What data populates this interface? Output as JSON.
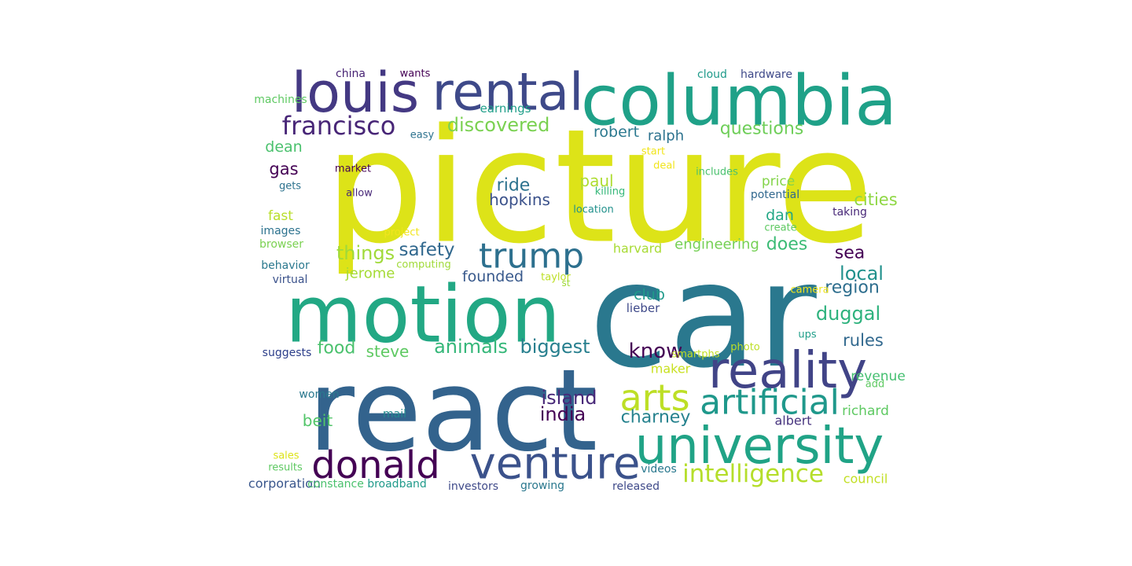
{
  "words": [
    {
      "text": "picture",
      "color": "#dde318"
    },
    {
      "text": "car",
      "color": "#2a788e"
    },
    {
      "text": "react",
      "color": "#33638d"
    },
    {
      "text": "motion",
      "color": "#22a884"
    },
    {
      "text": "columbia",
      "color": "#1fa188"
    },
    {
      "text": "louis",
      "color": "#443983"
    },
    {
      "text": "rental",
      "color": "#3e4989"
    },
    {
      "text": "university",
      "color": "#20a386"
    },
    {
      "text": "reality",
      "color": "#414487"
    },
    {
      "text": "venture",
      "color": "#3b528b"
    },
    {
      "text": "donald",
      "color": "#440154"
    },
    {
      "text": "artificial",
      "color": "#1f988b"
    },
    {
      "text": "arts",
      "color": "#bddf26"
    },
    {
      "text": "trump",
      "color": "#2d708e"
    },
    {
      "text": "francisco",
      "color": "#482677"
    },
    {
      "text": "intelligence",
      "color": "#b5de2b"
    },
    {
      "text": "discovered",
      "color": "#7ad151"
    },
    {
      "text": "biggest",
      "color": "#277f8e"
    },
    {
      "text": "animals",
      "color": "#35b779"
    },
    {
      "text": "questions",
      "color": "#6ece58"
    },
    {
      "text": "things",
      "color": "#a0da39"
    },
    {
      "text": "safety",
      "color": "#31688e"
    },
    {
      "text": "duggal",
      "color": "#2db27d"
    },
    {
      "text": "india",
      "color": "#440154"
    },
    {
      "text": "island",
      "color": "#482878"
    },
    {
      "text": "know",
      "color": "#440154"
    },
    {
      "text": "charney",
      "color": "#26828e"
    },
    {
      "text": "ride",
      "color": "#2c728e"
    },
    {
      "text": "hopkins",
      "color": "#3b528b"
    },
    {
      "text": "food",
      "color": "#4ac16d"
    },
    {
      "text": "steve",
      "color": "#5ec962"
    },
    {
      "text": "rules",
      "color": "#31688e"
    },
    {
      "text": "does",
      "color": "#3bbb75"
    },
    {
      "text": "local",
      "color": "#21918c"
    },
    {
      "text": "region",
      "color": "#2e6e8e"
    },
    {
      "text": "sea",
      "color": "#440154"
    },
    {
      "text": "cities",
      "color": "#8fd744"
    },
    {
      "text": "founded",
      "color": "#38598c"
    },
    {
      "text": "jerome",
      "color": "#a5db36"
    },
    {
      "text": "robert",
      "color": "#2a788e"
    },
    {
      "text": "paul",
      "color": "#addc30"
    },
    {
      "text": "club",
      "color": "#1f9a8a"
    },
    {
      "text": "engineering",
      "color": "#75d054"
    },
    {
      "text": "dan",
      "color": "#22a785"
    },
    {
      "text": "beit",
      "color": "#52c569"
    },
    {
      "text": "gas",
      "color": "#440154"
    },
    {
      "text": "dean",
      "color": "#4ac16d"
    },
    {
      "text": "richard",
      "color": "#5ec962"
    },
    {
      "text": "price",
      "color": "#84d44b"
    },
    {
      "text": "ralph",
      "color": "#2c728e"
    },
    {
      "text": "harvard",
      "color": "#a8db34"
    },
    {
      "text": "maker",
      "color": "#c8e020"
    },
    {
      "text": "albert",
      "color": "#46337e"
    },
    {
      "text": "corporation",
      "color": "#39568c"
    },
    {
      "text": "council",
      "color": "#c2df23"
    },
    {
      "text": "earnings",
      "color": "#1f9e89"
    },
    {
      "text": "revenue",
      "color": "#44bf70"
    },
    {
      "text": "fast",
      "color": "#b8de29"
    },
    {
      "text": "cloud",
      "color": "#1f9a8a"
    },
    {
      "text": "hardware",
      "color": "#3e4989"
    },
    {
      "text": "china",
      "color": "#482475"
    },
    {
      "text": "wants",
      "color": "#440154"
    },
    {
      "text": "machines",
      "color": "#5ec962"
    },
    {
      "text": "lieber",
      "color": "#3e4989"
    },
    {
      "text": "growing",
      "color": "#2a788e"
    },
    {
      "text": "investors",
      "color": "#3e4989"
    },
    {
      "text": "released",
      "color": "#3e4989"
    },
    {
      "text": "broadband",
      "color": "#1f9a8a"
    },
    {
      "text": "constance",
      "color": "#4ac16d"
    },
    {
      "text": "suggests",
      "color": "#2c3e8a"
    },
    {
      "text": "potential",
      "color": "#31688e"
    },
    {
      "text": "taking",
      "color": "#482878"
    },
    {
      "text": "videos",
      "color": "#2a788e"
    },
    {
      "text": "mail",
      "color": "#23898e"
    },
    {
      "text": "computing",
      "color": "#a0da39"
    },
    {
      "text": "women",
      "color": "#2a788e"
    },
    {
      "text": "virtual",
      "color": "#3b528b"
    },
    {
      "text": "behavior",
      "color": "#2a788e"
    },
    {
      "text": "browser",
      "color": "#7ad151"
    },
    {
      "text": "images",
      "color": "#2c728e"
    },
    {
      "text": "create",
      "color": "#5ec962"
    },
    {
      "text": "location",
      "color": "#21918c"
    },
    {
      "text": "killing",
      "color": "#35b779"
    },
    {
      "text": "gets",
      "color": "#2c728e"
    },
    {
      "text": "market",
      "color": "#440154"
    },
    {
      "text": "allow",
      "color": "#482878"
    },
    {
      "text": "sales",
      "color": "#dde318"
    },
    {
      "text": "results",
      "color": "#5ec962"
    },
    {
      "text": "includes",
      "color": "#4ac16d"
    },
    {
      "text": "ups",
      "color": "#1f9e89"
    },
    {
      "text": "photo",
      "color": "#bddf26"
    },
    {
      "text": "smartphs",
      "color": "#c2df23"
    },
    {
      "text": "add",
      "color": "#5ec962"
    },
    {
      "text": "easy",
      "color": "#2c728e"
    },
    {
      "text": "start",
      "color": "#f1e51d"
    },
    {
      "text": "deal",
      "color": "#f1e51d"
    },
    {
      "text": "project",
      "color": "#f1e51d"
    },
    {
      "text": "taylor",
      "color": "#bddf26"
    },
    {
      "text": "camera",
      "color": "#f1e51d"
    },
    {
      "text": "st",
      "color": "#a0da39"
    }
  ]
}
